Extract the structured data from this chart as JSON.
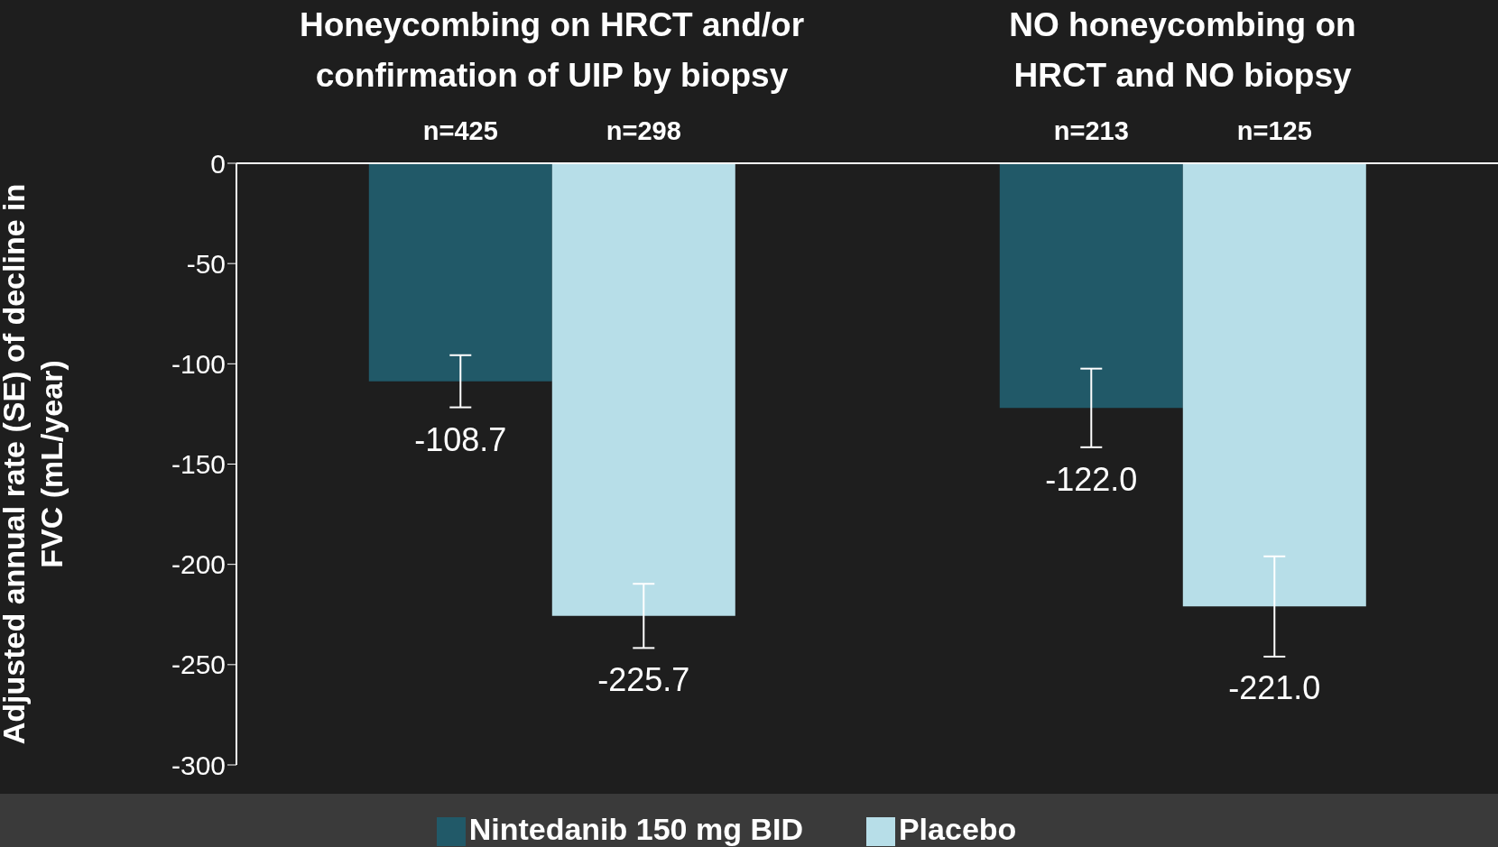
{
  "chart_data": {
    "type": "bar",
    "ylabel": "Adjusted annual rate (SE) of decline in FVC (mL/year)",
    "categories": [
      "Honeycombing on HRCT and/or confirmation of UIP by biopsy",
      "NO honeycombing on HRCT and NO biopsy"
    ],
    "series": [
      {
        "name": "Nintedanib 150 mg BID",
        "color": "#215968",
        "values": [
          -108.7,
          -122.0
        ],
        "errors": [
          13,
          19.6
        ],
        "value_labels": [
          "-108.7",
          "-122.0"
        ]
      },
      {
        "name": "Placebo",
        "color": "#b7dee8",
        "values": [
          -225.7,
          -221.0
        ],
        "errors": [
          16,
          25
        ],
        "value_labels": [
          "-225.7",
          "-221.0"
        ]
      }
    ],
    "annotations": [
      "n=425",
      "n=298",
      "n=213",
      "n=125"
    ],
    "ylim": [
      -300,
      0
    ],
    "yticks": [
      0,
      -50,
      -100,
      -150,
      -200,
      -250,
      -300
    ],
    "legend": "bottom"
  }
}
